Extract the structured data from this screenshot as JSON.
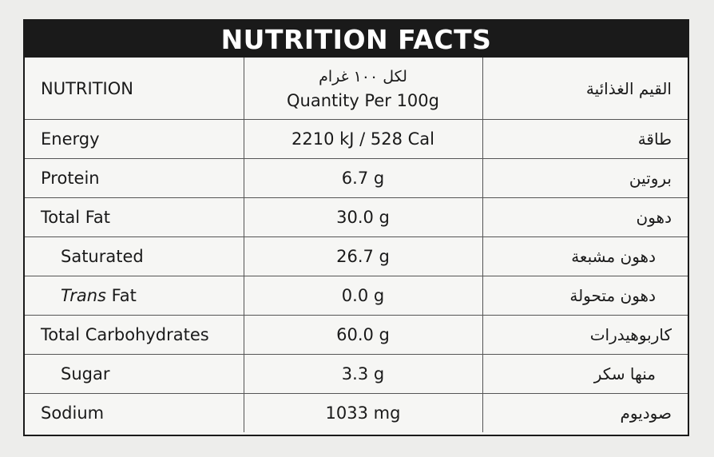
{
  "title": "NUTRITION FACTS",
  "header": {
    "col1": "NUTRITION",
    "col2_ar": "لكل ١٠٠ غرام",
    "col2_en": "Quantity Per 100g",
    "col3": "القيم الغذائية"
  },
  "rows": [
    {
      "name": "Energy",
      "value": "2210 kJ / 528 Cal",
      "ar": "طاقة"
    },
    {
      "name": "Protein",
      "value": "6.7 g",
      "ar": "بروتين"
    },
    {
      "name": "Total Fat",
      "value": "30.0 g",
      "ar": "دهون"
    },
    {
      "name": "Saturated",
      "value": "26.7 g",
      "ar": "دهون مشبعة"
    },
    {
      "name_italic": "Trans",
      "name_rest": " Fat",
      "value": "0.0 g",
      "ar": "دهون متحولة"
    },
    {
      "name": "Total Carbohydrates",
      "value": "60.0 g",
      "ar": "كاربوهيدرات"
    },
    {
      "name": "Sugar",
      "value": "3.3 g",
      "ar": "منها سكر"
    },
    {
      "name": "Sodium",
      "value": "1033 mg",
      "ar": "صوديوم"
    }
  ]
}
